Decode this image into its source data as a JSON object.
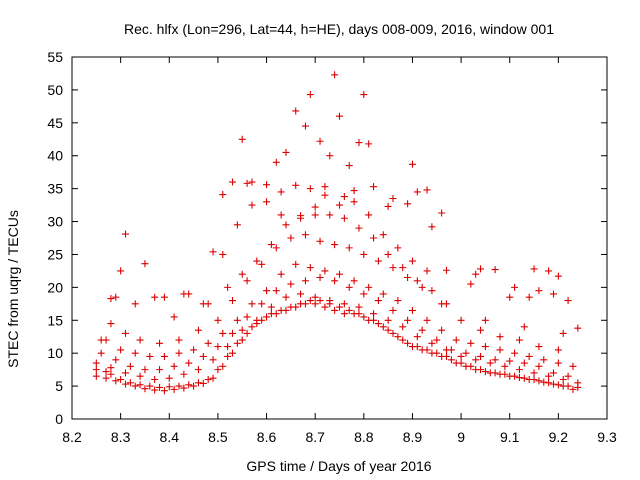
{
  "chart_data": {
    "type": "scatter",
    "title": "Rec. hlfx (Lon=296, Lat=44, h=HE), days 008-009, 2016, window 001",
    "xlabel": "GPS time / Days of year 2016",
    "ylabel": "STEC from uqrg / TECUs",
    "xlim": [
      8.2,
      9.3
    ],
    "ylim": [
      0,
      55
    ],
    "xticks": [
      "8.2",
      "8.3",
      "8.4",
      "8.5",
      "8.6",
      "8.7",
      "8.8",
      "8.9",
      "9",
      "9.1",
      "9.2",
      "9.3"
    ],
    "yticks": [
      "0",
      "5",
      "10",
      "15",
      "20",
      "25",
      "30",
      "35",
      "40",
      "45",
      "50",
      "55"
    ],
    "grid": false,
    "marker": "plus",
    "marker_color": "#dd0000",
    "series": [
      {
        "name": "",
        "x": [
          8.25,
          8.27,
          8.28,
          8.3,
          8.32,
          8.34,
          8.36,
          8.38,
          8.4,
          8.42,
          8.44,
          8.46,
          8.48,
          8.5,
          8.52,
          8.54,
          8.56,
          8.58,
          8.6,
          8.62,
          8.64,
          8.66,
          8.68,
          8.7,
          8.72,
          8.74,
          8.76,
          8.78,
          8.8,
          8.82,
          8.84,
          8.86,
          8.88,
          8.9,
          8.92,
          8.94,
          8.96,
          8.98,
          9.0,
          9.02,
          9.04,
          9.06,
          9.08,
          9.1,
          9.12,
          9.14,
          9.16,
          9.18,
          9.2,
          9.22,
          9.24,
          8.25,
          8.27,
          8.29,
          8.31,
          8.33,
          8.35,
          8.37,
          8.39,
          8.41,
          8.43,
          8.45,
          8.47,
          8.49,
          8.51,
          8.53,
          8.55,
          8.57,
          8.59,
          8.61,
          8.63,
          8.65,
          8.67,
          8.69,
          8.71,
          8.73,
          8.75,
          8.77,
          8.79,
          8.81,
          8.83,
          8.85,
          8.87,
          8.89,
          8.91,
          8.93,
          8.95,
          8.97,
          8.99,
          9.01,
          9.03,
          9.05,
          9.07,
          9.09,
          9.11,
          9.13,
          9.15,
          9.17,
          9.19,
          9.21,
          9.23,
          8.25,
          8.28,
          8.31,
          8.34,
          8.37,
          8.4,
          8.43,
          8.46,
          8.49,
          8.52,
          8.55,
          8.58,
          8.61,
          8.64,
          8.67,
          8.7,
          8.73,
          8.76,
          8.79,
          8.82,
          8.85,
          8.88,
          8.91,
          8.94,
          8.97,
          9.0,
          9.03,
          9.06,
          9.09,
          9.12,
          9.15,
          9.18,
          9.21,
          9.24,
          8.26,
          8.29,
          8.32,
          8.35,
          8.38,
          8.41,
          8.44,
          8.47,
          8.5,
          8.53,
          8.56,
          8.59,
          8.62,
          8.65,
          8.68,
          8.71,
          8.74,
          8.77,
          8.8,
          8.83,
          8.86,
          8.89,
          8.92,
          8.95,
          8.98,
          9.01,
          9.04,
          9.07,
          9.1,
          9.13,
          9.16,
          9.19,
          9.22,
          8.27,
          8.3,
          8.33,
          8.36,
          8.39,
          8.42,
          8.45,
          8.48,
          8.51,
          8.54,
          8.57,
          8.6,
          8.63,
          8.66,
          8.69,
          8.72,
          8.75,
          8.78,
          8.81,
          8.84,
          8.87,
          8.9,
          8.93,
          8.96,
          8.99,
          9.02,
          9.05,
          9.08,
          9.11,
          9.14,
          9.17,
          9.2,
          9.23,
          8.28,
          8.31,
          8.34,
          8.38,
          8.42,
          8.46,
          8.5,
          8.53,
          8.56,
          8.59,
          8.62,
          8.65,
          8.68,
          8.71,
          8.74,
          8.77,
          8.8,
          8.83,
          8.86,
          8.89,
          8.92,
          8.96,
          9.0,
          9.04,
          9.08,
          9.12,
          9.16,
          9.2,
          8.29,
          8.33,
          8.41,
          8.48,
          8.52,
          8.55,
          8.58,
          8.61,
          8.64,
          8.67,
          8.7,
          8.73,
          8.76,
          8.79,
          8.82,
          8.85,
          8.88,
          8.91,
          8.94,
          8.97,
          9.05,
          9.13,
          9.21,
          8.3,
          8.37,
          8.44,
          8.51,
          8.54,
          8.57,
          8.6,
          8.63,
          8.66,
          8.69,
          8.72,
          8.75,
          8.78,
          8.81,
          8.84,
          8.87,
          8.9,
          8.93,
          9.02,
          9.1,
          9.18,
          8.53,
          8.55,
          8.57,
          8.62,
          8.64,
          8.66,
          8.68,
          8.69,
          8.71,
          8.73,
          8.74,
          8.75,
          8.77,
          8.79,
          8.8,
          8.81,
          8.85,
          8.89,
          8.9,
          8.93,
          8.96,
          9.04,
          9.15,
          9.16,
          9.2,
          8.26,
          8.28,
          8.31,
          8.35,
          8.39,
          8.43,
          8.47,
          8.49,
          8.51,
          8.56,
          8.6,
          8.63,
          8.67,
          8.7,
          8.72,
          8.76,
          8.78,
          8.82,
          8.86,
          8.91,
          8.94,
          8.97,
          9.03,
          9.07,
          9.11,
          9.14,
          9.19,
          9.22,
          9.24
        ],
        "y": [
          7.5,
          7.2,
          6.8,
          6.0,
          5.5,
          5.2,
          5.0,
          4.8,
          4.9,
          5.0,
          5.2,
          5.5,
          6.0,
          7.5,
          9.5,
          11.5,
          13.0,
          14.5,
          15.5,
          16.0,
          16.5,
          17.0,
          17.5,
          17.5,
          17.0,
          16.5,
          16.0,
          16.0,
          15.5,
          15.0,
          14.0,
          13.0,
          12.0,
          11.0,
          10.5,
          10.0,
          9.5,
          9.0,
          8.5,
          8.0,
          7.5,
          7.0,
          6.8,
          6.5,
          6.3,
          6.0,
          5.8,
          5.5,
          5.2,
          5.0,
          4.8,
          6.5,
          6.2,
          5.8,
          5.3,
          5.0,
          4.6,
          4.4,
          4.3,
          4.5,
          4.7,
          5.0,
          5.4,
          6.2,
          8.0,
          10.0,
          12.0,
          14.0,
          15.0,
          16.0,
          16.5,
          17.0,
          17.5,
          18.0,
          18.0,
          17.5,
          17.0,
          16.5,
          16.0,
          15.0,
          14.5,
          13.5,
          12.5,
          11.5,
          11.0,
          10.5,
          10.0,
          9.5,
          8.5,
          8.0,
          7.5,
          7.2,
          7.0,
          6.8,
          6.5,
          6.2,
          6.0,
          5.6,
          5.3,
          5.0,
          4.5,
          8.5,
          7.8,
          7.0,
          6.5,
          6.0,
          6.2,
          6.8,
          7.5,
          9.0,
          11.0,
          13.5,
          15.0,
          17.0,
          18.5,
          19.0,
          18.5,
          18.0,
          17.5,
          17.0,
          16.0,
          15.0,
          14.0,
          12.5,
          11.5,
          10.5,
          9.5,
          9.0,
          8.5,
          8.0,
          7.5,
          7.0,
          6.5,
          6.0,
          5.5,
          10.0,
          9.0,
          8.0,
          7.5,
          7.5,
          8.0,
          8.5,
          9.5,
          11.0,
          13.0,
          15.5,
          17.5,
          19.5,
          20.5,
          21.0,
          21.5,
          21.0,
          20.0,
          19.0,
          18.0,
          16.5,
          15.0,
          13.5,
          12.0,
          10.5,
          10.0,
          9.5,
          9.0,
          8.8,
          8.5,
          8.0,
          7.0,
          6.5,
          12.0,
          10.5,
          10.0,
          9.5,
          9.5,
          10.0,
          10.5,
          11.5,
          13.0,
          15.0,
          17.5,
          19.5,
          22.0,
          23.5,
          23.0,
          22.5,
          22.0,
          21.0,
          20.0,
          19.0,
          18.0,
          16.5,
          15.0,
          13.5,
          12.0,
          11.5,
          11.0,
          10.5,
          10.0,
          9.5,
          9.0,
          8.5,
          8.0,
          14.5,
          13.0,
          12.0,
          11.5,
          12.0,
          13.5,
          15.0,
          18.0,
          21.0,
          23.5,
          26.0,
          27.5,
          28.0,
          27.0,
          26.5,
          26.0,
          25.0,
          24.0,
          23.0,
          21.5,
          20.0,
          17.5,
          15.0,
          13.5,
          12.5,
          12.0,
          11.0,
          10.5,
          18.5,
          17.5,
          15.5,
          17.5,
          20.0,
          22.0,
          24.0,
          26.5,
          29.5,
          30.5,
          31.0,
          31.0,
          30.5,
          29.0,
          27.5,
          25.0,
          23.0,
          21.0,
          19.5,
          17.5,
          15.0,
          14.0,
          13.0,
          22.5,
          18.5,
          19.0,
          25.0,
          29.5,
          32.5,
          33.0,
          34.5,
          35.5,
          35.0,
          34.0,
          32.5,
          33.0,
          31.0,
          28.0,
          26.0,
          24.0,
          22.5,
          20.5,
          18.5,
          22.5,
          36.0,
          42.5,
          36.0,
          39.0,
          40.5,
          46.8,
          44.5,
          49.3,
          42.2,
          40.0,
          52.3,
          46.0,
          38.5,
          42.0,
          49.3,
          41.8,
          32.3,
          32.7,
          38.7,
          34.8,
          31.3,
          22.8,
          22.8,
          19.5,
          21.7,
          12.0,
          18.3,
          28.1,
          23.6,
          18.5,
          19.0,
          17.5,
          25.4,
          34.1,
          35.8,
          35.6,
          31.0,
          30.9,
          32.2,
          35.3,
          33.8,
          34.7,
          35.3,
          33.5,
          34.5,
          29.2,
          22.6,
          22.0,
          22.7,
          20.0,
          18.5,
          19.0,
          18.0,
          13.8
        ]
      }
    ]
  }
}
